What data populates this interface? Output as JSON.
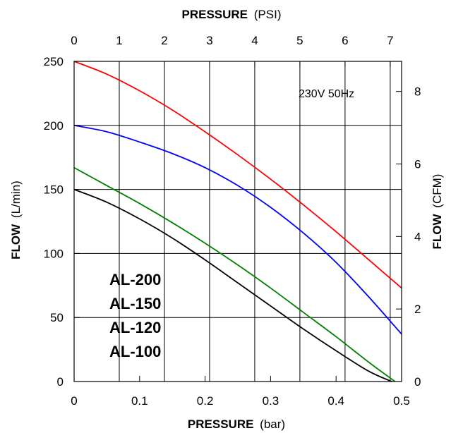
{
  "chart_data": {
    "type": "line",
    "annotation": "230V 50Hz",
    "x_bottom": {
      "label_bold": "PRESSURE",
      "label_unit": "(bar)",
      "range": [
        0,
        0.5
      ],
      "ticks": [
        "0",
        "0.1",
        "0.2",
        "0.3",
        "0.4",
        "0.5"
      ]
    },
    "x_top": {
      "label_bold": "PRESSURE",
      "label_unit": "(PSI)",
      "range": [
        0,
        7.252
      ],
      "ticks": [
        "0",
        "1",
        "2",
        "3",
        "4",
        "5",
        "6",
        "7"
      ]
    },
    "y_left": {
      "label_bold": "FLOW",
      "label_unit": "(L/min)",
      "range": [
        0,
        250
      ],
      "ticks": [
        "0",
        "50",
        "100",
        "150",
        "200",
        "250"
      ]
    },
    "y_right": {
      "label_bold": "FLOW",
      "label_unit": "(CFM)",
      "range": [
        0,
        8.83
      ],
      "ticks": [
        "0",
        "2",
        "4",
        "6",
        "8"
      ]
    },
    "grid": true,
    "legend_position": "bottom-left",
    "series": [
      {
        "name": "AL-200",
        "color": "#ff0000",
        "x": [
          0,
          0.05,
          0.1,
          0.15,
          0.2,
          0.25,
          0.3,
          0.35,
          0.4,
          0.45,
          0.5
        ],
        "y": [
          250,
          240,
          227,
          212,
          195,
          177,
          158,
          138,
          117,
          95,
          73
        ]
      },
      {
        "name": "AL-150",
        "color": "#0000ff",
        "x": [
          0,
          0.05,
          0.1,
          0.15,
          0.2,
          0.25,
          0.3,
          0.35,
          0.4,
          0.45,
          0.5
        ],
        "y": [
          200,
          195,
          187,
          178,
          167,
          153,
          136,
          116,
          93,
          66,
          37
        ]
      },
      {
        "name": "AL-120",
        "color": "#008000",
        "x": [
          0,
          0.05,
          0.1,
          0.15,
          0.2,
          0.25,
          0.3,
          0.35,
          0.4,
          0.45,
          0.49
        ],
        "y": [
          167,
          153,
          139,
          124,
          108,
          91,
          73,
          54,
          35,
          15,
          0
        ]
      },
      {
        "name": "AL-100",
        "color": "#000000",
        "x": [
          0,
          0.05,
          0.1,
          0.15,
          0.2,
          0.25,
          0.3,
          0.35,
          0.4,
          0.45,
          0.485
        ],
        "y": [
          150,
          140,
          127,
          112,
          95,
          77,
          59,
          41,
          24,
          8,
          0
        ]
      }
    ]
  }
}
